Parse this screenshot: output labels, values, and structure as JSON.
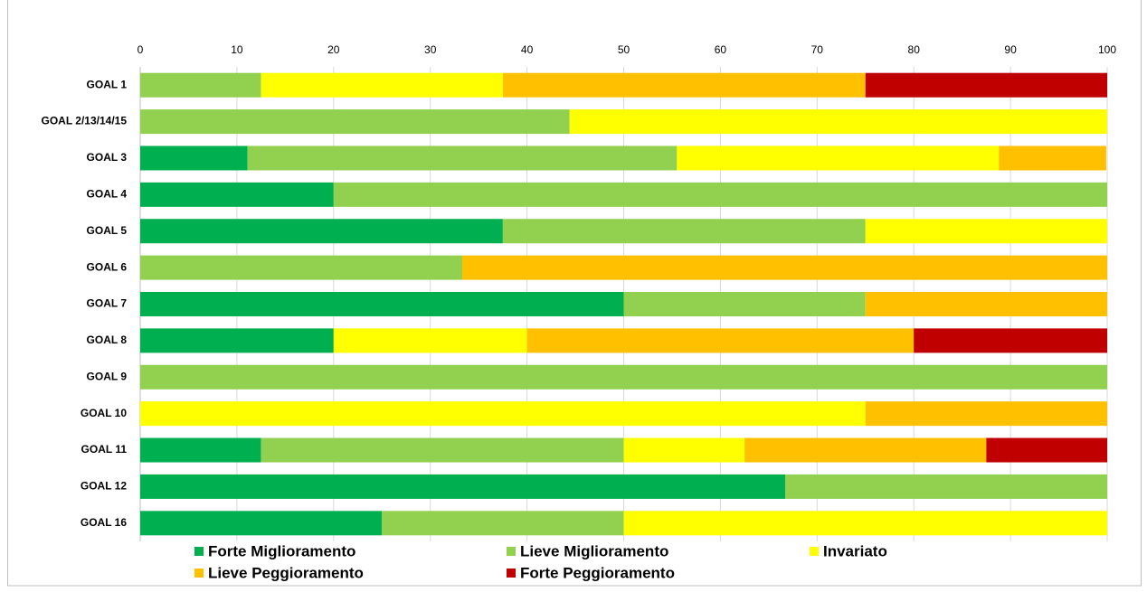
{
  "chart_data": {
    "type": "stacked_bar_horizontal",
    "categories": [
      "GOAL  1",
      "GOAL 2/13/14/15",
      "GOAL  3",
      "GOAL  4",
      "GOAL  5",
      "GOAL  6",
      "GOAL  7",
      "GOAL  8",
      "GOAL  9",
      "GOAL 10",
      "GOAL 11",
      "GOAL 12",
      "GOAL 16"
    ],
    "series": [
      {
        "name": "Forte Miglioramento",
        "color": "#00b050",
        "values": [
          0,
          0,
          11.1,
          20,
          37.5,
          0,
          50,
          20,
          0,
          0,
          12.5,
          66.7,
          25
        ]
      },
      {
        "name": "Lieve Miglioramento",
        "color": "#92d050",
        "values": [
          12.5,
          44.4,
          44.4,
          80,
          37.5,
          33.3,
          25,
          0,
          100,
          0,
          37.5,
          33.3,
          25
        ]
      },
      {
        "name": "Invariato",
        "color": "#ffff00",
        "values": [
          25,
          55.6,
          33.3,
          0,
          25,
          0,
          0,
          20,
          0,
          75,
          12.5,
          0,
          50
        ]
      },
      {
        "name": "Lieve Peggioramento",
        "color": "#ffc000",
        "values": [
          37.5,
          0,
          11.1,
          0,
          0,
          66.7,
          25,
          40,
          0,
          25,
          25,
          0,
          0
        ]
      },
      {
        "name": "Forte Peggioramento",
        "color": "#c00000",
        "values": [
          25,
          0,
          0,
          0,
          0,
          0,
          0,
          20,
          0,
          0,
          12.5,
          0,
          0
        ]
      }
    ],
    "xlim": [
      0,
      100
    ],
    "xticks": [
      0,
      10,
      20,
      30,
      40,
      50,
      60,
      70,
      80,
      90,
      100
    ],
    "grid": true
  }
}
